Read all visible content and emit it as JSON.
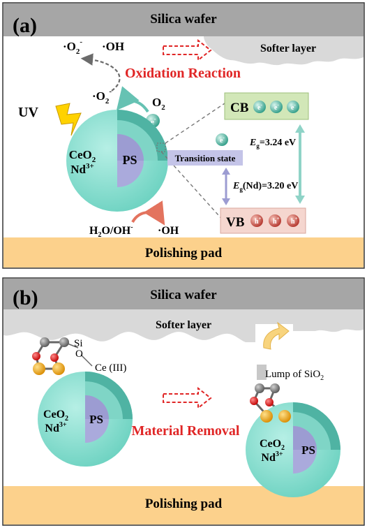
{
  "panel_a": {
    "label": "(a)",
    "wafer_label": "Silica wafer",
    "softer_layer": "Softer layer",
    "reaction_label": "Oxidation Reaction",
    "radical_superoxide": "·O",
    "radical_superoxide_sub": "2",
    "radical_superoxide_sup": "-",
    "radical_hydroxyl": "·OH",
    "superoxide_mid": "·O",
    "superoxide_mid_sub": "2",
    "superoxide_mid_sup": "-",
    "uv_label": "UV",
    "oxygen_label": "O",
    "oxygen_sub": "2",
    "electron": "e",
    "electron_sup": "-",
    "core_label": "PS",
    "ceo2": "CeO",
    "ceo2_sub": "2",
    "nd": "Nd",
    "nd_sup": "3+",
    "cb_label": "CB",
    "vb_label": "VB",
    "hole": "h",
    "hole_sup": "+",
    "transition_label": "Transition state",
    "eg_main": "E",
    "eg_main_sub": "g",
    "eg_main_value": "=3.24 eV",
    "eg_nd": "E",
    "eg_nd_sub": "g",
    "eg_nd_paren": "(Nd)",
    "eg_nd_value": "=3.20 eV",
    "water": "H",
    "water_sub": "2",
    "water_rest": "O/OH",
    "water_sup": "-",
    "hydroxyl_bottom": "·OH",
    "pad_label": "Polishing pad"
  },
  "panel_b": {
    "label": "(b)",
    "wafer_label": "Silica wafer",
    "softer_layer": "Softer layer",
    "si_label": "Si",
    "o_label": "O",
    "ce_label": "Ce (III)",
    "lump_label": "Lump of SiO",
    "lump_sub": "2",
    "core_label": "PS",
    "ceo2": "CeO",
    "ceo2_sub": "2",
    "nd": "Nd",
    "nd_sup": "3+",
    "removal_label": "Material Removal",
    "pad_label": "Polishing pad"
  },
  "colors": {
    "wafer": "#a6a6a6",
    "softer": "#d9d9d9",
    "pad": "#fcd18c",
    "sphere": "#8fe0d2",
    "sphere_dark": "#55b9a8",
    "core": "#aaaadc",
    "cb_box": "#d2e7b8",
    "vb_box": "#f5d6cf",
    "transition_box": "#c4c4e8",
    "accent_red": "#e02626",
    "electron": "#3aa08c",
    "hole": "#c4453c"
  }
}
